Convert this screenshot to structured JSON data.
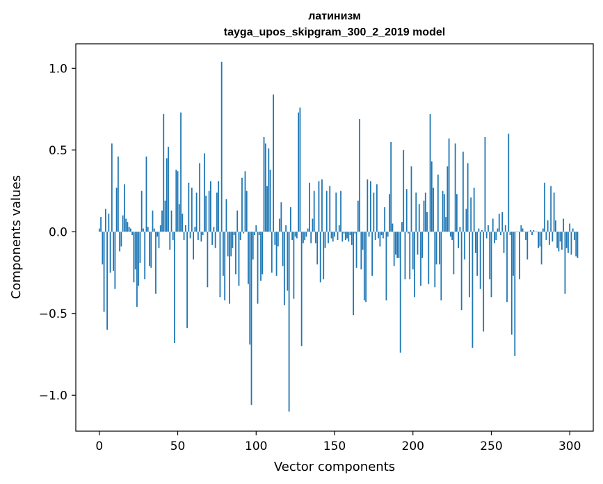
{
  "chart_data": {
    "type": "bar",
    "title": "латинизм",
    "subtitle": "tayga_upos_skipgram_300_2_2019 model",
    "xlabel": "Vector components",
    "ylabel": "Components values",
    "xlim": [
      -15,
      315
    ],
    "ylim": [
      -1.22,
      1.15
    ],
    "xticks": [
      0,
      50,
      100,
      150,
      200,
      250,
      300
    ],
    "xtick_labels": [
      "0",
      "50",
      "100",
      "150",
      "200",
      "250",
      "300"
    ],
    "yticks": [
      1.0,
      0.5,
      0.0,
      -0.5,
      -1.0
    ],
    "ytick_labels": [
      "1.0",
      "0.5",
      "0.0",
      "−0.5",
      "−1.0"
    ],
    "bar_color": "#1f77b4",
    "grid": false,
    "series": [
      {
        "name": "латинизм",
        "values": [
          0.02,
          0.09,
          -0.2,
          -0.49,
          0.14,
          -0.6,
          0.11,
          -0.25,
          0.54,
          -0.24,
          -0.35,
          0.27,
          0.46,
          -0.12,
          -0.09,
          0.1,
          0.29,
          0.08,
          0.06,
          0.03,
          0.02,
          -0.02,
          -0.31,
          -0.23,
          -0.46,
          -0.33,
          -0.19,
          0.25,
          0.02,
          -0.29,
          0.46,
          0.03,
          -0.21,
          -0.22,
          0.13,
          0.02,
          -0.38,
          -0.03,
          -0.1,
          0.04,
          0.13,
          0.72,
          0.19,
          0.45,
          0.52,
          -0.11,
          0.13,
          -0.05,
          -0.68,
          0.38,
          0.37,
          0.17,
          0.73,
          0.11,
          -0.05,
          0.04,
          -0.59,
          0.3,
          -0.04,
          0.27,
          -0.17,
          0.03,
          0.24,
          -0.05,
          0.42,
          -0.06,
          -0.02,
          0.48,
          0.22,
          -0.34,
          0.25,
          0.31,
          -0.08,
          0.03,
          -0.1,
          0.24,
          0.31,
          -0.4,
          1.04,
          -0.27,
          -0.42,
          0.2,
          -0.15,
          -0.44,
          -0.15,
          -0.1,
          -0.02,
          -0.26,
          0.13,
          -0.33,
          -0.05,
          0.33,
          -0.01,
          0.37,
          0.25,
          -0.32,
          -0.69,
          -1.06,
          -0.17,
          -0.02,
          0.04,
          -0.44,
          -0.02,
          -0.3,
          -0.26,
          0.58,
          0.54,
          0.28,
          0.51,
          0.38,
          -0.25,
          0.84,
          -0.08,
          -0.27,
          -0.09,
          0.08,
          0.18,
          -0.21,
          -0.45,
          0.04,
          -0.36,
          -1.1,
          0.15,
          -0.05,
          -0.41,
          -0.03,
          -0.04,
          0.73,
          0.76,
          -0.7,
          -0.07,
          -0.05,
          -0.03,
          0.02,
          0.3,
          -0.07,
          0.08,
          0.25,
          -0.07,
          -0.2,
          0.31,
          -0.31,
          0.32,
          -0.29,
          -0.1,
          0.25,
          -0.07,
          0.28,
          -0.04,
          -0.06,
          -0.03,
          0.24,
          -0.05,
          0.04,
          0.25,
          -0.06,
          -0.01,
          -0.05,
          -0.04,
          -0.06,
          -0.02,
          -0.08,
          -0.51,
          -0.01,
          -0.22,
          0.19,
          0.69,
          -0.23,
          -0.11,
          -0.42,
          -0.43,
          0.32,
          -0.03,
          0.31,
          -0.27,
          0.24,
          -0.05,
          0.29,
          -0.04,
          -0.09,
          -0.02,
          -0.04,
          0.15,
          -0.42,
          -0.03,
          0.23,
          0.55,
          0.05,
          -0.21,
          -0.14,
          -0.16,
          -0.16,
          -0.74,
          0.06,
          0.5,
          -0.29,
          0.26,
          -0.01,
          -0.29,
          0.4,
          -0.23,
          -0.4,
          0.24,
          -0.14,
          0.17,
          -0.33,
          -0.16,
          0.19,
          0.24,
          0.12,
          -0.32,
          0.72,
          0.43,
          0.27,
          -0.34,
          -0.2,
          0.35,
          -0.2,
          -0.42,
          0.25,
          0.23,
          0.09,
          0.4,
          0.57,
          -0.03,
          -0.05,
          -0.26,
          0.54,
          0.23,
          -0.1,
          0.03,
          -0.48,
          0.49,
          -0.17,
          0.14,
          0.42,
          -0.4,
          0.21,
          -0.71,
          0.27,
          -0.13,
          -0.27,
          0.02,
          -0.35,
          0.01,
          -0.61,
          0.58,
          -0.04,
          0.04,
          -0.29,
          -0.4,
          0.08,
          -0.07,
          -0.05,
          0.02,
          0.11,
          -0.02,
          0.12,
          -0.13,
          0.04,
          -0.43,
          0.6,
          -0.02,
          -0.63,
          -0.27,
          -0.76,
          0.0,
          0.0,
          -0.29,
          0.04,
          0.02,
          0.0,
          -0.05,
          -0.17,
          0.0,
          0.01,
          -0.02,
          0.01,
          0.0,
          0.0,
          -0.1,
          -0.09,
          -0.2,
          0.02,
          0.3,
          -0.05,
          0.07,
          -0.08,
          0.28,
          -0.06,
          0.24,
          0.07,
          -0.1,
          -0.12,
          -0.06,
          -0.11,
          0.08,
          -0.38,
          -0.1,
          -0.13,
          0.05,
          -0.14,
          0.02,
          -0.05,
          -0.15,
          -0.16
        ]
      }
    ]
  }
}
